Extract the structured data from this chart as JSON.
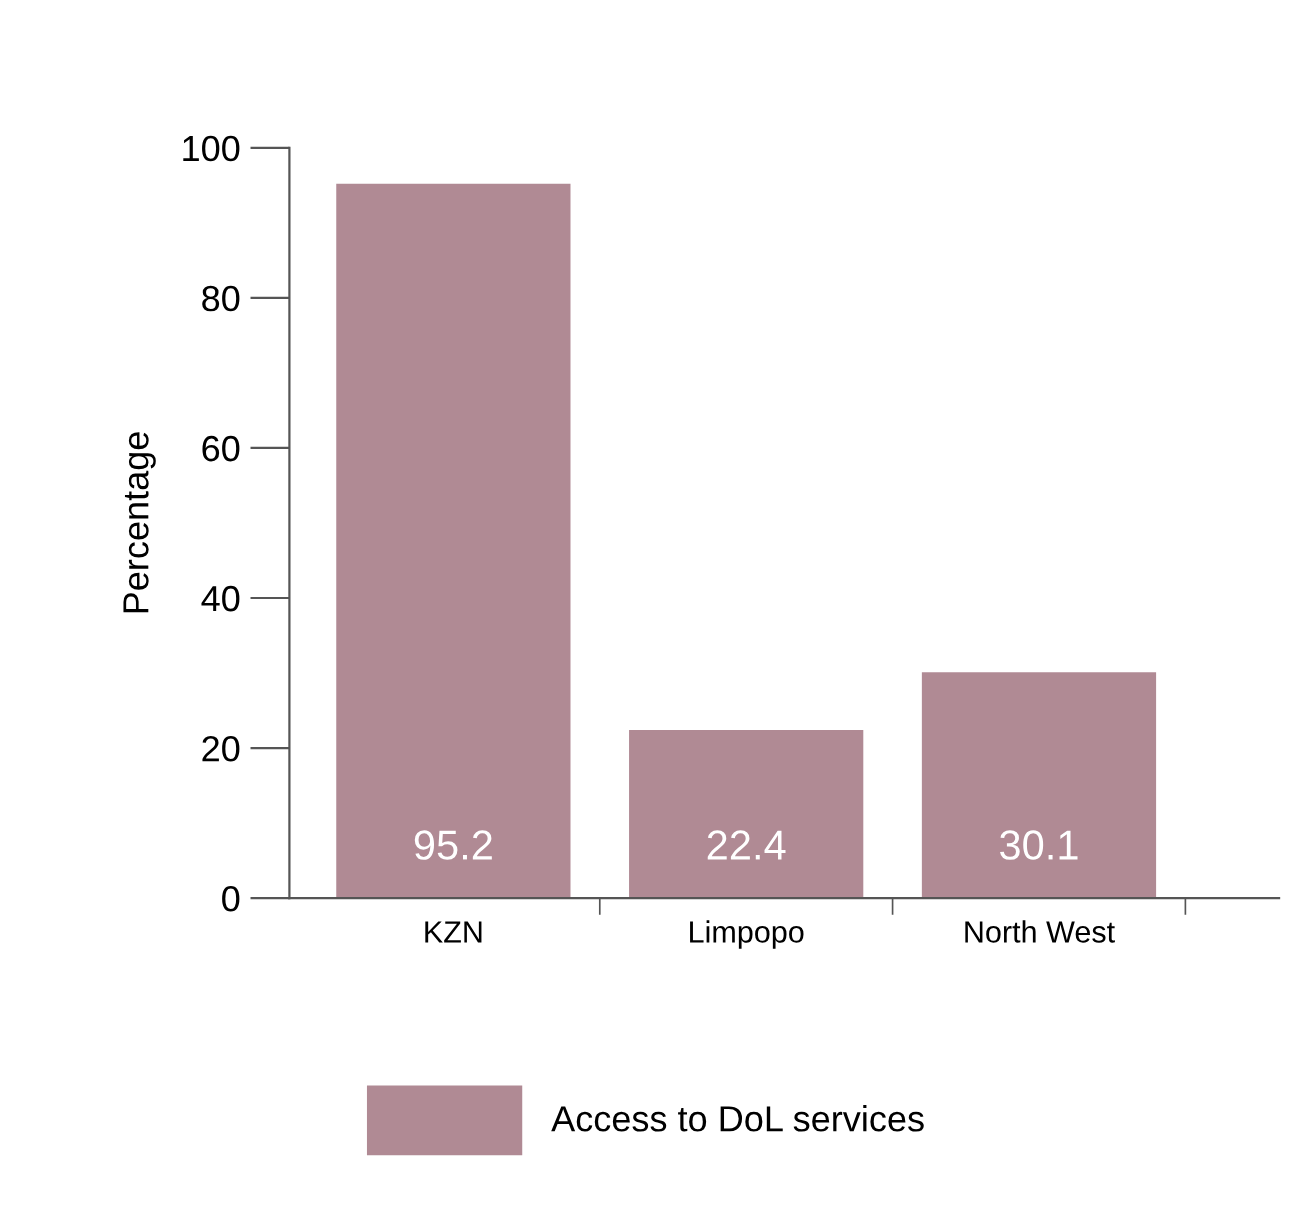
{
  "chart_data": {
    "type": "bar",
    "ylabel": "Percentage",
    "categories": [
      "KZN",
      "Limpopo",
      "North West"
    ],
    "series": [
      {
        "name": "Access to DoL services",
        "color": "#b08a94",
        "values": [
          95.2,
          22.4,
          30.1
        ]
      }
    ],
    "ylim": [
      0,
      100
    ],
    "yticks": [
      0,
      20,
      40,
      60,
      80,
      100
    ],
    "data_labels": true,
    "legend": "bottom",
    "grid": false
  }
}
